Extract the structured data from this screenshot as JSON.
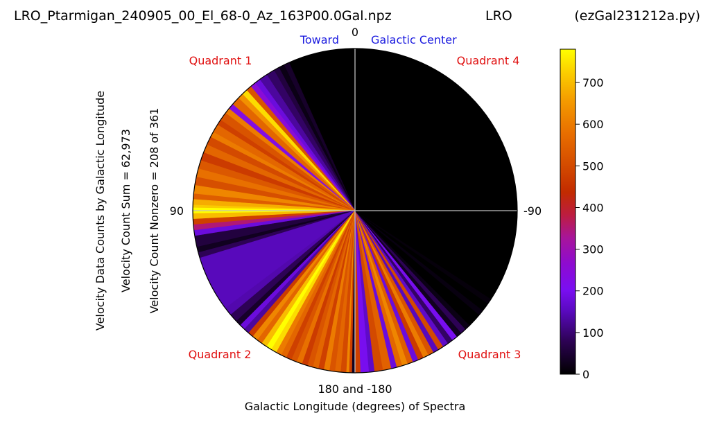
{
  "header": {
    "filename": "LRO_Ptarmigan_240905_00_El_68-0_Az_163P00.0Gal.npz",
    "station": "LRO",
    "script": "(ezGal231212a.py)"
  },
  "chart_data": {
    "type": "polar-heatmap",
    "xlabel": "Galactic Longitude (degrees) of Spectra",
    "ylabel_lines": [
      "Velocity Data Counts by Galactic Longitude",
      "Velocity Count Sum = 62,973",
      "Velocity Count Nonzero = 208 of 361"
    ],
    "direction_labels": {
      "top": "0",
      "left": "90",
      "right": "-90",
      "bottom": "180 and -180",
      "toward": "Toward",
      "galactic_center": "Galactic Center"
    },
    "quadrant_labels": [
      "Quadrant 1",
      "Quadrant 4",
      "Quadrant 2",
      "Quadrant 3"
    ],
    "colorbar": {
      "min": 0,
      "max": 780,
      "ticks": [
        0,
        100,
        200,
        300,
        400,
        500,
        600,
        700
      ],
      "colormap": "gnuplot"
    },
    "wedges": [
      {
        "lon_start": 0,
        "lon_end": 24,
        "count": 0
      },
      {
        "lon_start": 24,
        "lon_end": 26,
        "count": 40
      },
      {
        "lon_start": 26,
        "lon_end": 28,
        "count": 20
      },
      {
        "lon_start": 28,
        "lon_end": 30,
        "count": 60
      },
      {
        "lon_start": 30,
        "lon_end": 33,
        "count": 90
      },
      {
        "lon_start": 33,
        "lon_end": 36,
        "count": 130
      },
      {
        "lon_start": 36,
        "lon_end": 38,
        "count": 180
      },
      {
        "lon_start": 38,
        "lon_end": 40,
        "count": 250
      },
      {
        "lon_start": 40,
        "lon_end": 42,
        "count": 520
      },
      {
        "lon_start": 42,
        "lon_end": 44,
        "count": 740
      },
      {
        "lon_start": 44,
        "lon_end": 46,
        "count": 640
      },
      {
        "lon_start": 46,
        "lon_end": 49,
        "count": 560
      },
      {
        "lon_start": 49,
        "lon_end": 51,
        "count": 230
      },
      {
        "lon_start": 51,
        "lon_end": 53,
        "count": 600
      },
      {
        "lon_start": 53,
        "lon_end": 56,
        "count": 520
      },
      {
        "lon_start": 56,
        "lon_end": 58,
        "count": 480
      },
      {
        "lon_start": 58,
        "lon_end": 61,
        "count": 560
      },
      {
        "lon_start": 61,
        "lon_end": 63,
        "count": 600
      },
      {
        "lon_start": 63,
        "lon_end": 66,
        "count": 500
      },
      {
        "lon_start": 66,
        "lon_end": 69,
        "count": 560
      },
      {
        "lon_start": 69,
        "lon_end": 72,
        "count": 470
      },
      {
        "lon_start": 72,
        "lon_end": 75,
        "count": 530
      },
      {
        "lon_start": 75,
        "lon_end": 78,
        "count": 580
      },
      {
        "lon_start": 78,
        "lon_end": 81,
        "count": 510
      },
      {
        "lon_start": 81,
        "lon_end": 84,
        "count": 620
      },
      {
        "lon_start": 84,
        "lon_end": 86,
        "count": 540
      },
      {
        "lon_start": 86,
        "lon_end": 88,
        "count": 680
      },
      {
        "lon_start": 88,
        "lon_end": 89,
        "count": 720
      },
      {
        "lon_start": 89,
        "lon_end": 91,
        "count": 780
      },
      {
        "lon_start": 91,
        "lon_end": 93,
        "count": 700
      },
      {
        "lon_start": 93,
        "lon_end": 95,
        "count": 480
      },
      {
        "lon_start": 95,
        "lon_end": 97,
        "count": 350
      },
      {
        "lon_start": 97,
        "lon_end": 99,
        "count": 180
      },
      {
        "lon_start": 99,
        "lon_end": 103,
        "count": 60
      },
      {
        "lon_start": 103,
        "lon_end": 105,
        "count": 30
      },
      {
        "lon_start": 105,
        "lon_end": 107,
        "count": 80
      },
      {
        "lon_start": 107,
        "lon_end": 127,
        "count": 150
      },
      {
        "lon_start": 127,
        "lon_end": 130,
        "count": 140
      },
      {
        "lon_start": 130,
        "lon_end": 133,
        "count": 80
      },
      {
        "lon_start": 133,
        "lon_end": 135,
        "count": 40
      },
      {
        "lon_start": 135,
        "lon_end": 137,
        "count": 180
      },
      {
        "lon_start": 137,
        "lon_end": 139,
        "count": 130
      },
      {
        "lon_start": 139,
        "lon_end": 141,
        "count": 470
      },
      {
        "lon_start": 141,
        "lon_end": 143,
        "count": 620
      },
      {
        "lon_start": 143,
        "lon_end": 145,
        "count": 560
      },
      {
        "lon_start": 145,
        "lon_end": 147,
        "count": 700
      },
      {
        "lon_start": 147,
        "lon_end": 149,
        "count": 780
      },
      {
        "lon_start": 149,
        "lon_end": 151,
        "count": 740
      },
      {
        "lon_start": 151,
        "lon_end": 153,
        "count": 600
      },
      {
        "lon_start": 153,
        "lon_end": 155,
        "count": 560
      },
      {
        "lon_start": 155,
        "lon_end": 157,
        "count": 480
      },
      {
        "lon_start": 157,
        "lon_end": 159,
        "count": 520
      },
      {
        "lon_start": 159,
        "lon_end": 161,
        "count": 580
      },
      {
        "lon_start": 161,
        "lon_end": 163,
        "count": 470
      },
      {
        "lon_start": 163,
        "lon_end": 165,
        "count": 520
      },
      {
        "lon_start": 165,
        "lon_end": 167,
        "count": 560
      },
      {
        "lon_start": 167,
        "lon_end": 169,
        "count": 480
      },
      {
        "lon_start": 169,
        "lon_end": 171,
        "count": 600
      },
      {
        "lon_start": 171,
        "lon_end": 173,
        "count": 520
      },
      {
        "lon_start": 173,
        "lon_end": 175,
        "count": 560
      },
      {
        "lon_start": 175,
        "lon_end": 177,
        "count": 500
      },
      {
        "lon_start": 177,
        "lon_end": 178,
        "count": 620
      },
      {
        "lon_start": 178,
        "lon_end": 179,
        "count": 480
      },
      {
        "lon_start": 179,
        "lon_end": 180,
        "count": 30
      },
      {
        "lon_start": -180,
        "lon_end": -178,
        "count": 480
      },
      {
        "lon_start": -178,
        "lon_end": -175,
        "count": 200
      },
      {
        "lon_start": -175,
        "lon_end": -173,
        "count": 160
      },
      {
        "lon_start": -173,
        "lon_end": -170,
        "count": 500
      },
      {
        "lon_start": -170,
        "lon_end": -167,
        "count": 550
      },
      {
        "lon_start": -167,
        "lon_end": -165,
        "count": 180
      },
      {
        "lon_start": -165,
        "lon_end": -163,
        "count": 560
      },
      {
        "lon_start": -163,
        "lon_end": -161,
        "count": 620
      },
      {
        "lon_start": -161,
        "lon_end": -159,
        "count": 540
      },
      {
        "lon_start": -159,
        "lon_end": -157,
        "count": 180
      },
      {
        "lon_start": -157,
        "lon_end": -155,
        "count": 470
      },
      {
        "lon_start": -155,
        "lon_end": -153,
        "count": 600
      },
      {
        "lon_start": -153,
        "lon_end": -151,
        "count": 520
      },
      {
        "lon_start": -151,
        "lon_end": -149,
        "count": 150
      },
      {
        "lon_start": -149,
        "lon_end": -147,
        "count": 500
      },
      {
        "lon_start": -147,
        "lon_end": -145,
        "count": 160
      },
      {
        "lon_start": -145,
        "lon_end": -143,
        "count": 90
      },
      {
        "lon_start": -143,
        "lon_end": -141,
        "count": 200
      },
      {
        "lon_start": -141,
        "lon_end": -139,
        "count": 30
      },
      {
        "lon_start": -139,
        "lon_end": -137,
        "count": 80
      },
      {
        "lon_start": -137,
        "lon_end": -135,
        "count": 20
      },
      {
        "lon_start": -135,
        "lon_end": -130,
        "count": 0
      },
      {
        "lon_start": -130,
        "lon_end": -128,
        "count": 15
      },
      {
        "lon_start": -128,
        "lon_end": -125,
        "count": 0
      },
      {
        "lon_start": -125,
        "lon_end": -123,
        "count": 10
      },
      {
        "lon_start": -123,
        "lon_end": -90,
        "count": 0
      },
      {
        "lon_start": -90,
        "lon_end": 0,
        "count": 0
      }
    ]
  }
}
